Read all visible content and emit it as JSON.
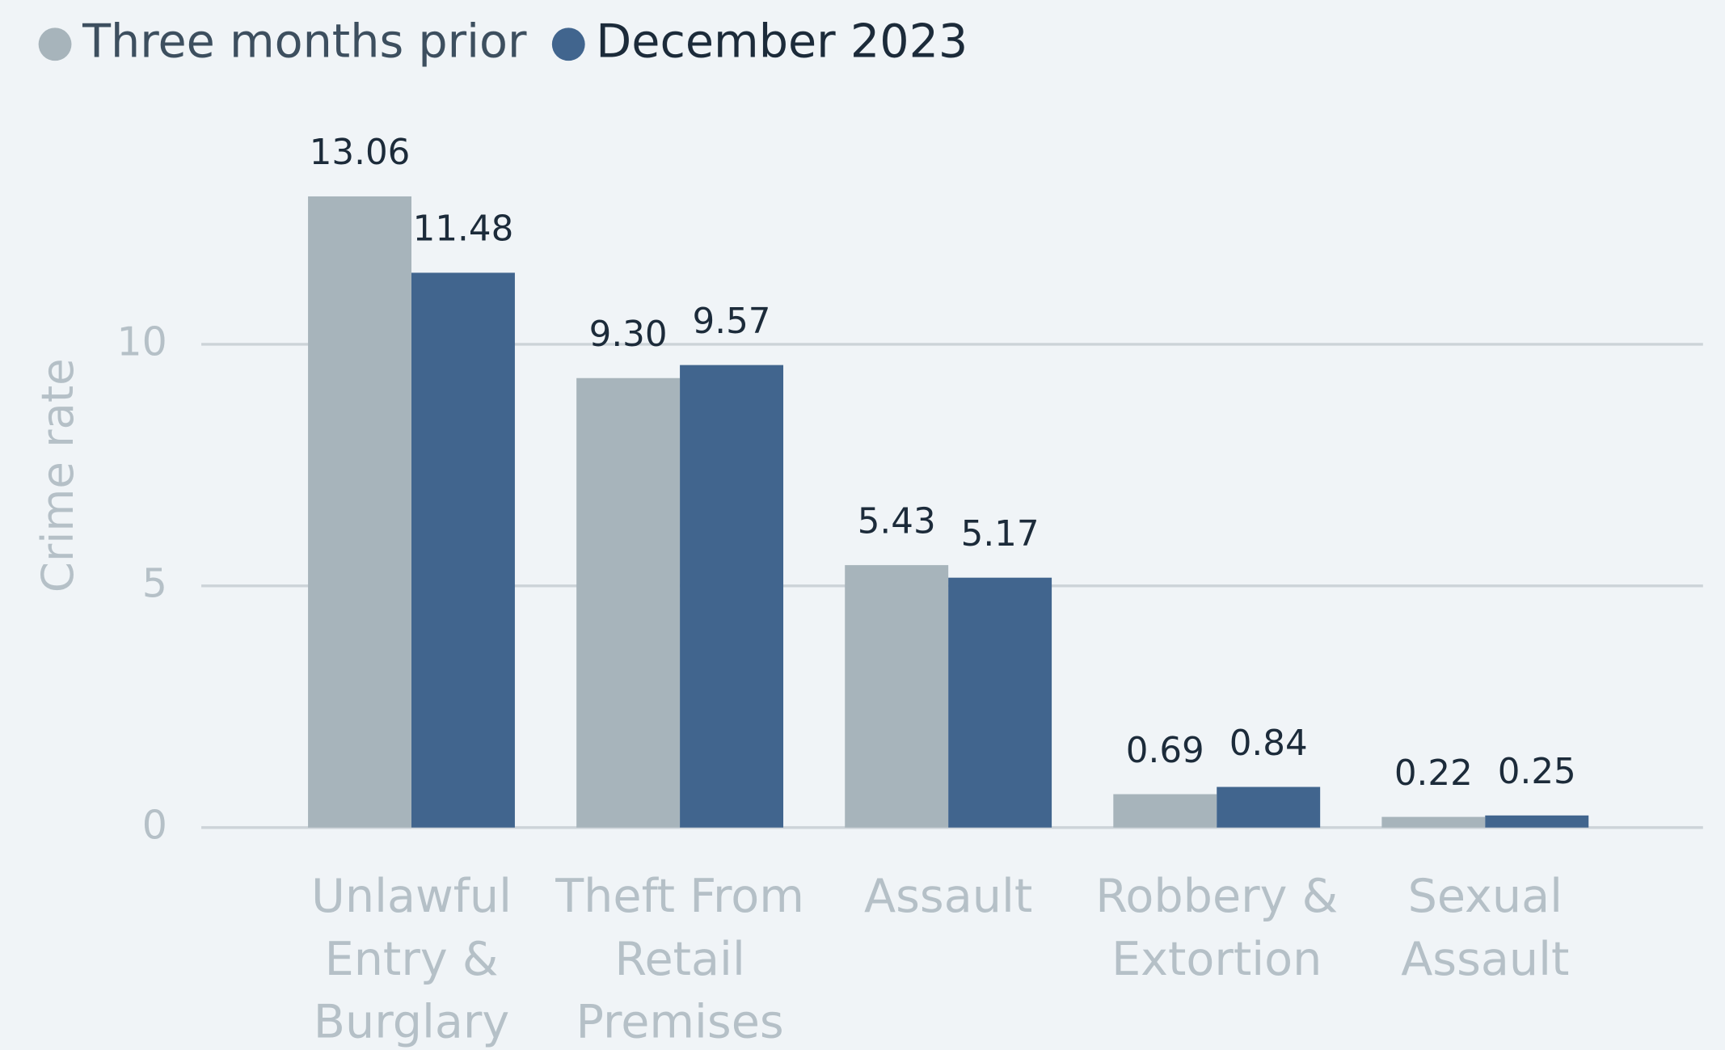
{
  "chart_data": {
    "type": "bar",
    "y_label": "Crime rate",
    "categories": [
      "Unlawful Entry & Burglary",
      "Theft From Retail Premises",
      "Assault",
      "Robbery & Extortion",
      "Sexual Assault"
    ],
    "series": [
      {
        "name": "Three months prior",
        "color": "#a7b4bb",
        "values": [
          13.06,
          9.3,
          5.43,
          0.69,
          0.22
        ],
        "value_labels": [
          "13.06",
          "9.30",
          "5.43",
          "0.69",
          "0.22"
        ]
      },
      {
        "name": "December 2023",
        "color": "#41658e",
        "values": [
          11.48,
          9.57,
          5.17,
          0.84,
          0.25
        ],
        "value_labels": [
          "11.48",
          "9.57",
          "5.17",
          "0.84",
          "0.25"
        ]
      }
    ],
    "ylim": [
      0,
      14
    ],
    "yticks": [
      0,
      5,
      10
    ],
    "grid": true,
    "legend": "top-left"
  }
}
